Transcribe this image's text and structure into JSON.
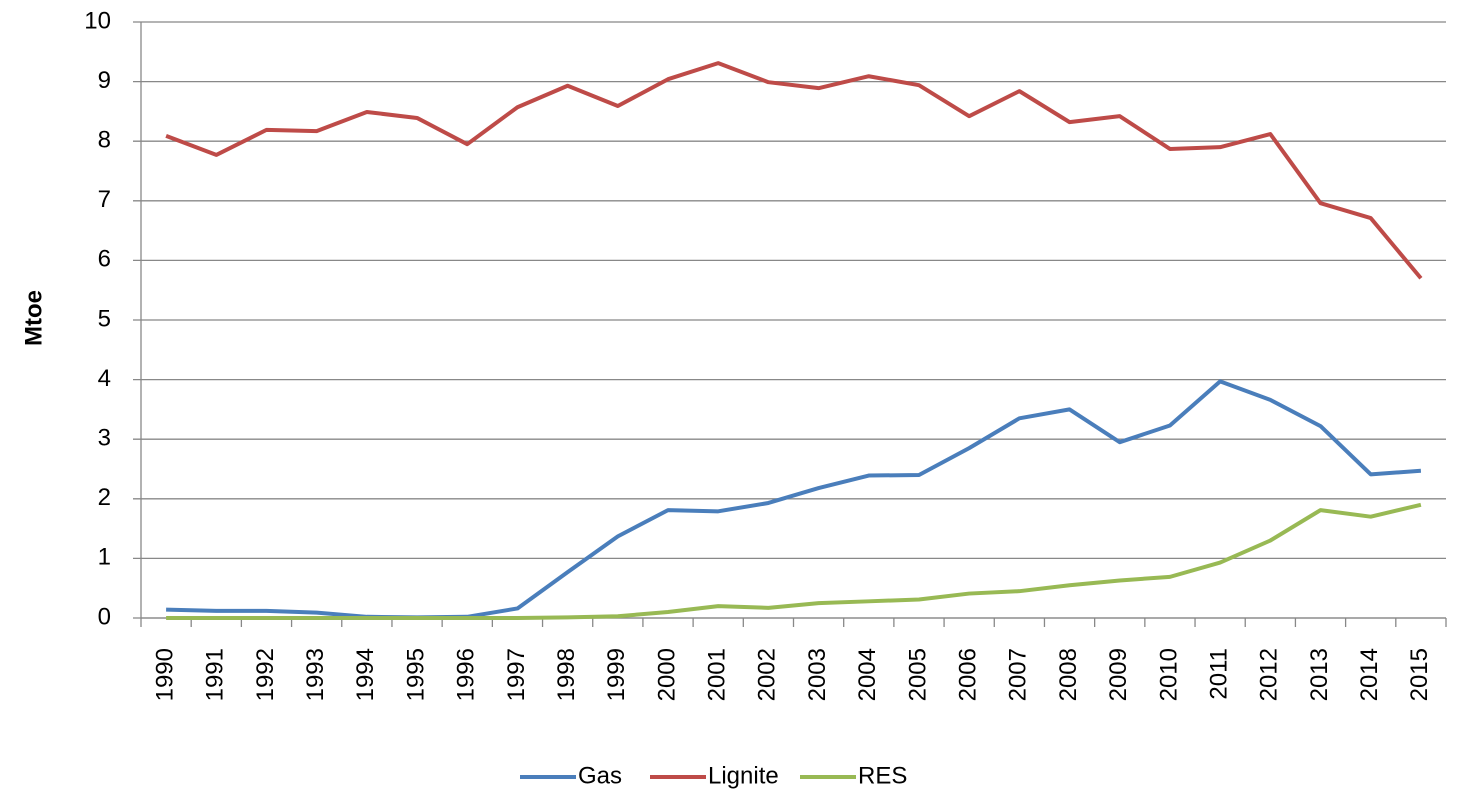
{
  "chart_data": {
    "type": "line",
    "y_label": "Mtoe",
    "categories": [
      "1990",
      "1991",
      "1992",
      "1993",
      "1994",
      "1995",
      "1996",
      "1997",
      "1998",
      "1999",
      "2000",
      "2001",
      "2002",
      "2003",
      "2004",
      "2005",
      "2006",
      "2007",
      "2008",
      "2009",
      "2010",
      "2011",
      "2012",
      "2013",
      "2014",
      "2015"
    ],
    "series": [
      {
        "name": "Gas",
        "color": "#4a7ebb",
        "values": [
          0.14,
          0.12,
          0.12,
          0.09,
          0.02,
          0.01,
          0.02,
          0.16,
          0.77,
          1.37,
          1.81,
          1.79,
          1.93,
          2.18,
          2.39,
          2.4,
          2.85,
          3.35,
          3.5,
          2.95,
          3.23,
          3.97,
          3.66,
          3.22,
          2.41,
          2.47
        ]
      },
      {
        "name": "Lignite",
        "color": "#be4b48",
        "values": [
          8.09,
          7.77,
          8.19,
          8.17,
          8.49,
          8.39,
          7.95,
          8.57,
          8.93,
          8.59,
          9.04,
          9.31,
          8.99,
          8.89,
          9.09,
          8.94,
          8.42,
          8.84,
          8.32,
          8.42,
          7.87,
          7.9,
          8.12,
          6.96,
          6.71,
          5.7
        ]
      },
      {
        "name": "RES",
        "color": "#98b954",
        "values": [
          0,
          0,
          0,
          0,
          0,
          0,
          0,
          0,
          0.01,
          0.03,
          0.1,
          0.2,
          0.17,
          0.25,
          0.28,
          0.31,
          0.41,
          0.45,
          0.55,
          0.63,
          0.69,
          0.93,
          1.3,
          1.81,
          1.7,
          1.9
        ]
      }
    ],
    "ylim": [
      0,
      10
    ],
    "yticks": [
      0,
      1,
      2,
      3,
      4,
      5,
      6,
      7,
      8,
      9,
      10
    ],
    "grid": true,
    "legend": "bottom"
  }
}
